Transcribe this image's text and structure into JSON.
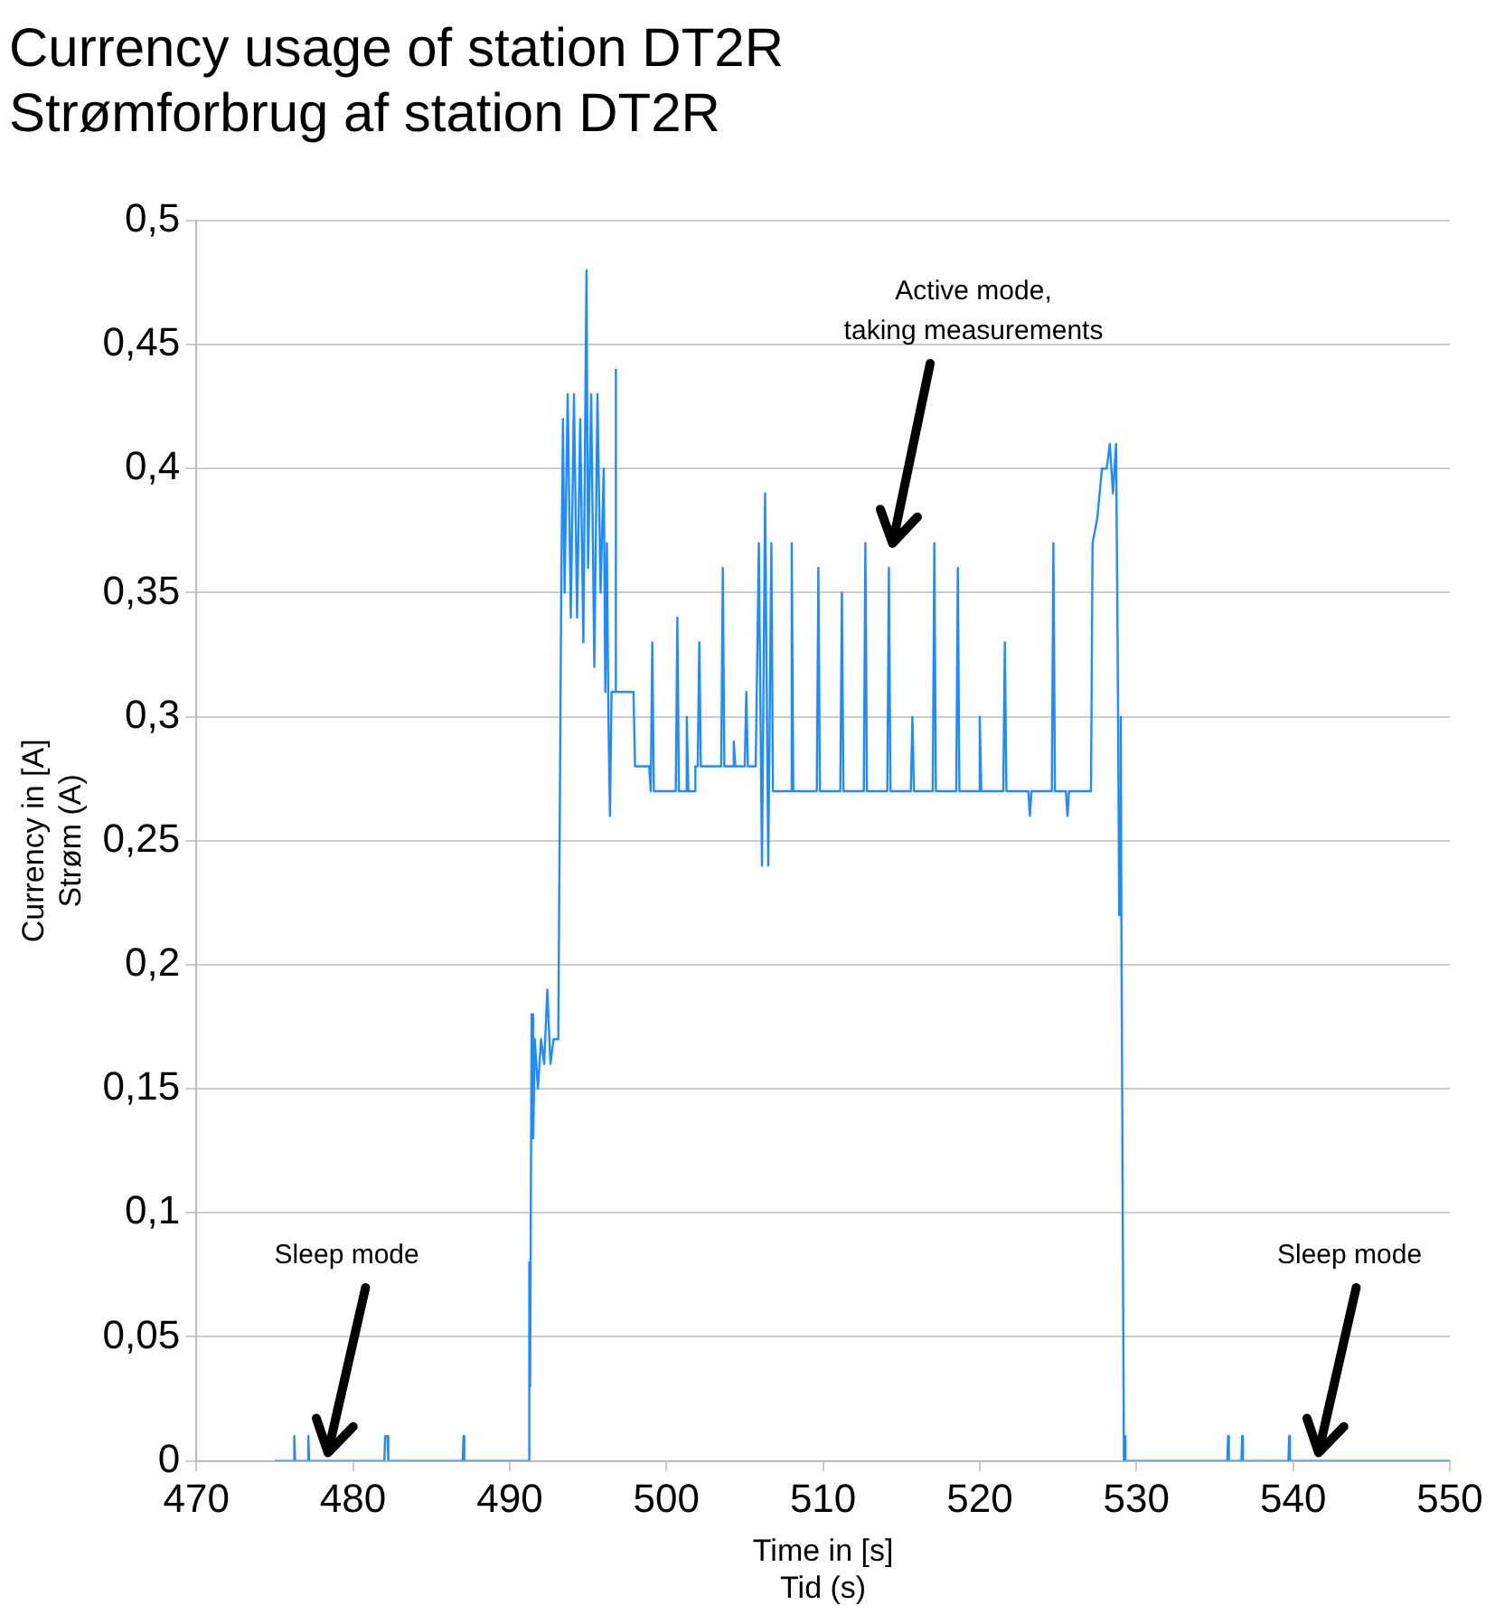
{
  "chart_data": {
    "type": "line",
    "title": "Currency usage of station DT2R",
    "subtitle": "Strømforbrug af station DT2R",
    "xlabel": "Time in [s]\nTid (s)",
    "ylabel": "Currency in [A]\nStrøm (A)",
    "xlim": [
      470,
      550
    ],
    "xticks": [
      470,
      480,
      490,
      500,
      510,
      520,
      530,
      540,
      550
    ],
    "ylim": [
      0,
      0.5
    ],
    "yticks": [
      {
        "value": 0,
        "label": "0"
      },
      {
        "value": 0.05,
        "label": "0,05"
      },
      {
        "value": 0.1,
        "label": "0,1"
      },
      {
        "value": 0.15,
        "label": "0,15"
      },
      {
        "value": 0.2,
        "label": "0,2"
      },
      {
        "value": 0.25,
        "label": "0,25"
      },
      {
        "value": 0.3,
        "label": "0,3"
      },
      {
        "value": 0.35,
        "label": "0,35"
      },
      {
        "value": 0.4,
        "label": "0,4"
      },
      {
        "value": 0.45,
        "label": "0,45"
      },
      {
        "value": 0.5,
        "label": "0,5"
      }
    ],
    "grid": "y",
    "legend": false,
    "marker": "none",
    "line_style": "solid",
    "series": [
      {
        "color": "#1e8cff",
        "x": [
          475,
          476.2,
          476.25,
          476.3,
          477.1,
          477.15,
          477.2,
          482,
          482.05,
          482.2,
          482.25,
          487,
          487.05,
          487.1,
          491.2,
          491.25,
          491.3,
          491.4,
          491.5,
          491.6,
          491.8,
          492,
          492.2,
          492.4,
          492.6,
          492.8,
          493.1,
          493.3,
          493.4,
          493.5,
          493.7,
          493.9,
          494.1,
          494.3,
          494.5,
          494.7,
          494.9,
          495,
          495.2,
          495.4,
          495.6,
          495.8,
          496,
          496.1,
          496.2,
          496.3,
          496.4,
          496.5,
          496.7,
          496.75,
          496.8,
          497.9,
          498,
          498.9,
          499,
          499.1,
          499.2,
          500.6,
          500.7,
          500.8,
          501.2,
          501.3,
          501.4,
          501.8,
          501.85,
          502,
          502.1,
          502.2,
          503.5,
          503.6,
          503.7,
          504.2,
          504.3,
          504.4,
          505,
          505.1,
          505.2,
          505.7,
          505.9,
          506.1,
          506.3,
          506.5,
          506.7,
          506.8,
          507.9,
          508,
          508.1,
          509.6,
          509.7,
          509.8,
          511.1,
          511.2,
          511.3,
          512.6,
          512.7,
          512.8,
          514.1,
          514.2,
          514.3,
          515.6,
          515.7,
          515.8,
          517,
          517.1,
          517.2,
          518.5,
          518.6,
          518.7,
          519.9,
          520,
          520.1,
          521.5,
          521.6,
          521.7,
          523.1,
          523.2,
          523.3,
          524.6,
          524.7,
          524.8,
          525.5,
          525.6,
          525.7,
          527.1,
          527.2,
          527.5,
          527.8,
          528.1,
          528.3,
          528.5,
          528.7,
          528.8,
          528.9,
          529,
          529.05,
          529.2,
          529.25,
          529.3,
          535.8,
          535.85,
          535.9,
          536.7,
          536.75,
          536.8,
          539.7,
          539.75,
          539.8,
          550
        ],
        "values": [
          0,
          0,
          0.01,
          0,
          0,
          0.01,
          0,
          0,
          0.01,
          0.01,
          0,
          0,
          0.01,
          0,
          0,
          0.08,
          0.03,
          0.18,
          0.13,
          0.17,
          0.15,
          0.17,
          0.16,
          0.19,
          0.16,
          0.17,
          0.17,
          0.36,
          0.42,
          0.35,
          0.43,
          0.34,
          0.43,
          0.34,
          0.42,
          0.33,
          0.48,
          0.36,
          0.43,
          0.32,
          0.43,
          0.35,
          0.4,
          0.31,
          0.37,
          0.3,
          0.26,
          0.31,
          0.31,
          0.44,
          0.31,
          0.31,
          0.28,
          0.28,
          0.27,
          0.33,
          0.27,
          0.27,
          0.34,
          0.27,
          0.27,
          0.3,
          0.27,
          0.27,
          0.28,
          0.28,
          0.33,
          0.28,
          0.28,
          0.36,
          0.28,
          0.28,
          0.29,
          0.28,
          0.28,
          0.31,
          0.28,
          0.28,
          0.37,
          0.24,
          0.39,
          0.24,
          0.37,
          0.27,
          0.27,
          0.37,
          0.27,
          0.27,
          0.36,
          0.27,
          0.27,
          0.35,
          0.27,
          0.27,
          0.37,
          0.27,
          0.27,
          0.36,
          0.27,
          0.27,
          0.3,
          0.27,
          0.27,
          0.37,
          0.27,
          0.27,
          0.36,
          0.27,
          0.27,
          0.3,
          0.27,
          0.27,
          0.33,
          0.27,
          0.27,
          0.26,
          0.27,
          0.27,
          0.37,
          0.27,
          0.27,
          0.26,
          0.27,
          0.27,
          0.37,
          0.38,
          0.4,
          0.4,
          0.41,
          0.39,
          0.41,
          0.33,
          0.22,
          0.3,
          0.2,
          0,
          0.01,
          0,
          0,
          0.01,
          0,
          0,
          0.01,
          0,
          0,
          0.01,
          0,
          0
        ]
      }
    ],
    "annotations": [
      "Active mode,\ntaking measurements",
      "Sleep mode",
      "Sleep mode"
    ]
  }
}
